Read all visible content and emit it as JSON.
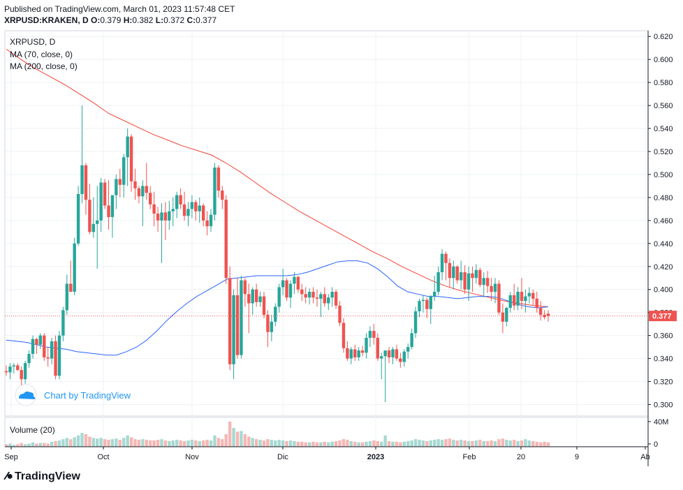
{
  "header": {
    "published": "Published on TradingView.com, March 01, 2023 11:57:48 CET",
    "symbol_line": "XRPUSD:KRAKEN, D",
    "ohlc": {
      "o_label": "O:",
      "o": "0.379",
      "h_label": "H:",
      "h": "0.382",
      "l_label": "L:",
      "l": "0.372",
      "c_label": "C:",
      "c": "0.377"
    }
  },
  "legend": {
    "symbol": "XRPUSD, D",
    "ma70": "MA (70, close, 0)",
    "ma200": "MA (200, close, 0)"
  },
  "watermark": "Chart by TradingView",
  "volume_label": "Volume (20)",
  "last_price_label": "0.377",
  "footer_brand": "TradingView",
  "colors": {
    "up": "#26a69a",
    "down": "#ef5350",
    "ma70": "#2962ff",
    "ma200": "#f44336",
    "vol_up": "#a7d9d2",
    "vol_down": "#f5b7b4",
    "price_line": "#ef5350",
    "watermark": "#2196f3"
  },
  "chart_data": {
    "type": "candlestick",
    "price_axis": {
      "min": 0.29,
      "max": 0.625,
      "ticks": [
        "0.300",
        "0.320",
        "0.340",
        "0.360",
        "0.380",
        "0.400",
        "0.420",
        "0.440",
        "0.460",
        "0.480",
        "0.500",
        "0.520",
        "0.540",
        "0.560",
        "0.580",
        "0.600",
        "0.620"
      ]
    },
    "volume_axis": {
      "ticks": [
        "0",
        "40M"
      ]
    },
    "x_labels": [
      "Sep",
      "Oct",
      "Nov",
      "Dic",
      "2023",
      "Feb",
      "20",
      "9",
      "Ab"
    ],
    "candles": [
      [
        0.329,
        0.334,
        0.325,
        0.328
      ],
      [
        0.328,
        0.336,
        0.322,
        0.333
      ],
      [
        0.333,
        0.336,
        0.327,
        0.334
      ],
      [
        0.334,
        0.336,
        0.329,
        0.33
      ],
      [
        0.33,
        0.333,
        0.315,
        0.322
      ],
      [
        0.322,
        0.338,
        0.318,
        0.336
      ],
      [
        0.336,
        0.347,
        0.332,
        0.344
      ],
      [
        0.344,
        0.36,
        0.34,
        0.357
      ],
      [
        0.357,
        0.358,
        0.344,
        0.352
      ],
      [
        0.352,
        0.362,
        0.348,
        0.36
      ],
      [
        0.36,
        0.362,
        0.338,
        0.341
      ],
      [
        0.341,
        0.35,
        0.333,
        0.34
      ],
      [
        0.34,
        0.358,
        0.335,
        0.355
      ],
      [
        0.355,
        0.36,
        0.322,
        0.325
      ],
      [
        0.325,
        0.364,
        0.322,
        0.36
      ],
      [
        0.36,
        0.385,
        0.355,
        0.382
      ],
      [
        0.382,
        0.413,
        0.378,
        0.405
      ],
      [
        0.405,
        0.425,
        0.398,
        0.398
      ],
      [
        0.398,
        0.445,
        0.395,
        0.44
      ],
      [
        0.44,
        0.49,
        0.438,
        0.483
      ],
      [
        0.483,
        0.56,
        0.475,
        0.508
      ],
      [
        0.508,
        0.51,
        0.465,
        0.478
      ],
      [
        0.478,
        0.492,
        0.448,
        0.45
      ],
      [
        0.45,
        0.48,
        0.445,
        0.457
      ],
      [
        0.457,
        0.49,
        0.418,
        0.46
      ],
      [
        0.46,
        0.497,
        0.45,
        0.493
      ],
      [
        0.493,
        0.496,
        0.47,
        0.473
      ],
      [
        0.473,
        0.495,
        0.452,
        0.463
      ],
      [
        0.463,
        0.48,
        0.445,
        0.482
      ],
      [
        0.482,
        0.5,
        0.47,
        0.496
      ],
      [
        0.496,
        0.505,
        0.48,
        0.491
      ],
      [
        0.491,
        0.518,
        0.48,
        0.515
      ],
      [
        0.515,
        0.54,
        0.49,
        0.533
      ],
      [
        0.533,
        0.535,
        0.485,
        0.494
      ],
      [
        0.494,
        0.505,
        0.478,
        0.488
      ],
      [
        0.488,
        0.49,
        0.475,
        0.481
      ],
      [
        0.481,
        0.495,
        0.455,
        0.49
      ],
      [
        0.49,
        0.51,
        0.478,
        0.484
      ],
      [
        0.484,
        0.49,
        0.47,
        0.474
      ],
      [
        0.474,
        0.485,
        0.455,
        0.466
      ],
      [
        0.466,
        0.472,
        0.45,
        0.46
      ],
      [
        0.46,
        0.475,
        0.423,
        0.467
      ],
      [
        0.467,
        0.476,
        0.443,
        0.46
      ],
      [
        0.46,
        0.477,
        0.452,
        0.468
      ],
      [
        0.468,
        0.48,
        0.455,
        0.47
      ],
      [
        0.47,
        0.485,
        0.462,
        0.482
      ],
      [
        0.482,
        0.488,
        0.47,
        0.474
      ],
      [
        0.474,
        0.485,
        0.46,
        0.464
      ],
      [
        0.464,
        0.476,
        0.455,
        0.47
      ],
      [
        0.47,
        0.482,
        0.462,
        0.476
      ],
      [
        0.476,
        0.478,
        0.46,
        0.468
      ],
      [
        0.468,
        0.48,
        0.458,
        0.473
      ],
      [
        0.473,
        0.475,
        0.455,
        0.46
      ],
      [
        0.46,
        0.468,
        0.447,
        0.455
      ],
      [
        0.455,
        0.47,
        0.45,
        0.465
      ],
      [
        0.465,
        0.51,
        0.46,
        0.506
      ],
      [
        0.506,
        0.508,
        0.48,
        0.486
      ],
      [
        0.486,
        0.49,
        0.47,
        0.478
      ],
      [
        0.478,
        0.482,
        0.405,
        0.41
      ],
      [
        0.41,
        0.42,
        0.33,
        0.335
      ],
      [
        0.335,
        0.4,
        0.322,
        0.395
      ],
      [
        0.395,
        0.41,
        0.34,
        0.343
      ],
      [
        0.343,
        0.412,
        0.34,
        0.408
      ],
      [
        0.408,
        0.41,
        0.385,
        0.396
      ],
      [
        0.396,
        0.405,
        0.362,
        0.388
      ],
      [
        0.388,
        0.402,
        0.378,
        0.4
      ],
      [
        0.4,
        0.405,
        0.385,
        0.389
      ],
      [
        0.389,
        0.398,
        0.385,
        0.394
      ],
      [
        0.394,
        0.398,
        0.375,
        0.378
      ],
      [
        0.378,
        0.382,
        0.35,
        0.363
      ],
      [
        0.363,
        0.378,
        0.355,
        0.372
      ],
      [
        0.372,
        0.388,
        0.368,
        0.385
      ],
      [
        0.385,
        0.405,
        0.38,
        0.402
      ],
      [
        0.402,
        0.418,
        0.395,
        0.408
      ],
      [
        0.408,
        0.41,
        0.39,
        0.393
      ],
      [
        0.393,
        0.408,
        0.384,
        0.405
      ],
      [
        0.405,
        0.415,
        0.396,
        0.411
      ],
      [
        0.411,
        0.412,
        0.397,
        0.4
      ],
      [
        0.4,
        0.405,
        0.39,
        0.396
      ],
      [
        0.396,
        0.402,
        0.388,
        0.393
      ],
      [
        0.393,
        0.401,
        0.387,
        0.398
      ],
      [
        0.398,
        0.402,
        0.388,
        0.393
      ],
      [
        0.393,
        0.4,
        0.385,
        0.392
      ],
      [
        0.392,
        0.398,
        0.376,
        0.396
      ],
      [
        0.396,
        0.402,
        0.385,
        0.388
      ],
      [
        0.388,
        0.396,
        0.382,
        0.393
      ],
      [
        0.393,
        0.402,
        0.385,
        0.398
      ],
      [
        0.398,
        0.4,
        0.383,
        0.386
      ],
      [
        0.386,
        0.39,
        0.368,
        0.371
      ],
      [
        0.371,
        0.375,
        0.345,
        0.349
      ],
      [
        0.349,
        0.355,
        0.338,
        0.34
      ],
      [
        0.34,
        0.35,
        0.335,
        0.348
      ],
      [
        0.348,
        0.352,
        0.338,
        0.341
      ],
      [
        0.341,
        0.35,
        0.338,
        0.347
      ],
      [
        0.347,
        0.351,
        0.342,
        0.345
      ],
      [
        0.345,
        0.362,
        0.34,
        0.358
      ],
      [
        0.358,
        0.368,
        0.35,
        0.364
      ],
      [
        0.364,
        0.37,
        0.352,
        0.358
      ],
      [
        0.358,
        0.362,
        0.338,
        0.34
      ],
      [
        0.34,
        0.345,
        0.322,
        0.342
      ],
      [
        0.342,
        0.346,
        0.302,
        0.347
      ],
      [
        0.347,
        0.35,
        0.336,
        0.341
      ],
      [
        0.341,
        0.35,
        0.335,
        0.348
      ],
      [
        0.348,
        0.352,
        0.338,
        0.34
      ],
      [
        0.34,
        0.345,
        0.332,
        0.337
      ],
      [
        0.337,
        0.348,
        0.333,
        0.346
      ],
      [
        0.346,
        0.353,
        0.34,
        0.35
      ],
      [
        0.35,
        0.366,
        0.348,
        0.362
      ],
      [
        0.362,
        0.385,
        0.358,
        0.381
      ],
      [
        0.381,
        0.392,
        0.376,
        0.39
      ],
      [
        0.39,
        0.395,
        0.38,
        0.391
      ],
      [
        0.391,
        0.393,
        0.375,
        0.383
      ],
      [
        0.383,
        0.395,
        0.37,
        0.394
      ],
      [
        0.394,
        0.412,
        0.39,
        0.398
      ],
      [
        0.398,
        0.42,
        0.395,
        0.415
      ],
      [
        0.415,
        0.435,
        0.408,
        0.431
      ],
      [
        0.431,
        0.433,
        0.408,
        0.423
      ],
      [
        0.423,
        0.427,
        0.402,
        0.41
      ],
      [
        0.41,
        0.425,
        0.4,
        0.42
      ],
      [
        0.42,
        0.421,
        0.405,
        0.408
      ],
      [
        0.408,
        0.425,
        0.4,
        0.415
      ],
      [
        0.415,
        0.421,
        0.396,
        0.4
      ],
      [
        0.4,
        0.42,
        0.39,
        0.414
      ],
      [
        0.414,
        0.42,
        0.398,
        0.41
      ],
      [
        0.41,
        0.422,
        0.405,
        0.417
      ],
      [
        0.417,
        0.419,
        0.402,
        0.404
      ],
      [
        0.404,
        0.415,
        0.393,
        0.41
      ],
      [
        0.41,
        0.416,
        0.397,
        0.403
      ],
      [
        0.403,
        0.41,
        0.39,
        0.398
      ],
      [
        0.398,
        0.41,
        0.388,
        0.405
      ],
      [
        0.405,
        0.408,
        0.378,
        0.38
      ],
      [
        0.38,
        0.388,
        0.362,
        0.372
      ],
      [
        0.372,
        0.385,
        0.368,
        0.384
      ],
      [
        0.384,
        0.398,
        0.38,
        0.395
      ],
      [
        0.395,
        0.405,
        0.382,
        0.386
      ],
      [
        0.386,
        0.402,
        0.382,
        0.398
      ],
      [
        0.398,
        0.41,
        0.383,
        0.39
      ],
      [
        0.39,
        0.4,
        0.38,
        0.394
      ],
      [
        0.394,
        0.402,
        0.388,
        0.397
      ],
      [
        0.397,
        0.4,
        0.386,
        0.392
      ],
      [
        0.392,
        0.398,
        0.38,
        0.384
      ],
      [
        0.384,
        0.39,
        0.373,
        0.378
      ],
      [
        0.378,
        0.382,
        0.374,
        0.376
      ],
      [
        0.379,
        0.382,
        0.372,
        0.377
      ]
    ],
    "ma70": [
      0.356,
      0.355,
      0.354,
      0.352,
      0.35,
      0.349,
      0.348,
      0.346,
      0.345,
      0.344,
      0.343,
      0.343,
      0.346,
      0.35,
      0.356,
      0.364,
      0.373,
      0.381,
      0.388,
      0.394,
      0.399,
      0.404,
      0.409,
      0.41,
      0.411,
      0.412,
      0.412,
      0.412,
      0.412,
      0.413,
      0.415,
      0.418,
      0.421,
      0.424,
      0.425,
      0.425,
      0.423,
      0.418,
      0.411,
      0.403,
      0.398,
      0.396,
      0.394,
      0.394,
      0.393,
      0.392,
      0.393,
      0.394,
      0.394,
      0.393,
      0.39,
      0.387,
      0.385,
      0.384,
      0.385
    ],
    "ma200": [
      0.609,
      0.6,
      0.592,
      0.585,
      0.578,
      0.57,
      0.562,
      0.553,
      0.547,
      0.541,
      0.535,
      0.53,
      0.525,
      0.521,
      0.517,
      0.51,
      0.502,
      0.493,
      0.484,
      0.476,
      0.468,
      0.461,
      0.454,
      0.447,
      0.44,
      0.433,
      0.427,
      0.42,
      0.414,
      0.408,
      0.403,
      0.399,
      0.396,
      0.393,
      0.39,
      0.388,
      0.386,
      0.385
    ],
    "volume": [
      4,
      5,
      3,
      4,
      6,
      4,
      5,
      7,
      5,
      6,
      6,
      5,
      8,
      9,
      10,
      12,
      14,
      12,
      15,
      18,
      22,
      20,
      16,
      14,
      13,
      14,
      12,
      11,
      12,
      13,
      11,
      14,
      18,
      15,
      12,
      11,
      12,
      11,
      10,
      10,
      11,
      12,
      10,
      9,
      10,
      11,
      10,
      9,
      10,
      11,
      10,
      9,
      10,
      11,
      10,
      18,
      14,
      12,
      20,
      40,
      30,
      24,
      25,
      20,
      16,
      14,
      12,
      11,
      10,
      12,
      11,
      10,
      11,
      10,
      9,
      10,
      9,
      8,
      8,
      7,
      7,
      8,
      7,
      7,
      8,
      7,
      8,
      9,
      10,
      12,
      11,
      9,
      8,
      7,
      7,
      8,
      9,
      10,
      9,
      8,
      18,
      9,
      8,
      8,
      7,
      8,
      9,
      10,
      12,
      11,
      10,
      9,
      10,
      11,
      12,
      11,
      12,
      13,
      11,
      10,
      11,
      10,
      9,
      9,
      10,
      11,
      9,
      9,
      10,
      9,
      12,
      13,
      11,
      10,
      11,
      9,
      10,
      12,
      10,
      9,
      8,
      7,
      8,
      7
    ]
  }
}
